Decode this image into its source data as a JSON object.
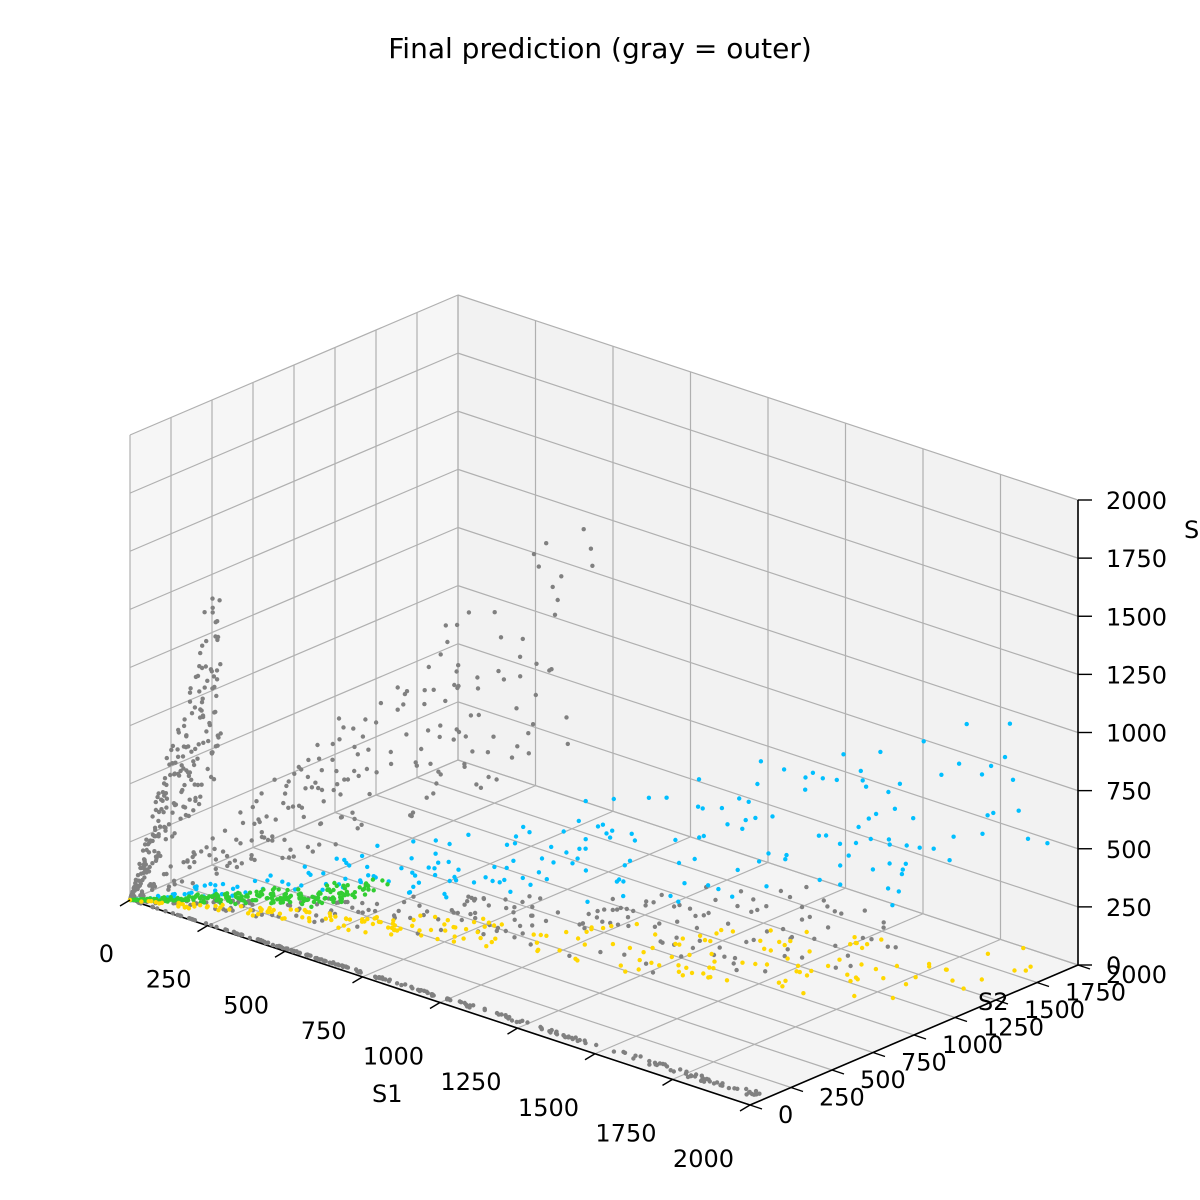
{
  "chart_data": {
    "type": "scatter",
    "projection": "3d",
    "title": "Final prediction (gray = outer)",
    "xlabel": "S1",
    "ylabel": "S2",
    "zlabel": "S",
    "xlim": [
      0,
      2000
    ],
    "ylim": [
      0,
      2000
    ],
    "zlim": [
      0,
      2000
    ],
    "xticks": [
      "0",
      "250",
      "500",
      "750",
      "1000",
      "1250",
      "1500",
      "1750",
      "2000"
    ],
    "yticks": [
      "0",
      "250",
      "500",
      "750",
      "1000",
      "1250",
      "1500",
      "1750",
      "2000"
    ],
    "zticks": [
      "0",
      "250",
      "500",
      "750",
      "1000",
      "1250",
      "1500",
      "1750",
      "2000"
    ],
    "grid": true,
    "colors": {
      "outer": "#808080",
      "cyan": "#00bfff",
      "green": "#32cd32",
      "gold": "#ffd700",
      "pane_back": "#f2f2f2",
      "pane_side": "#f6f6f6",
      "pane_floor": "#f4f4f4",
      "grid": "#b0b0b0"
    },
    "series": [
      {
        "color": "#808080",
        "clusters": [
          {
            "x": [
              0,
              250
            ],
            "y": [
              0,
              100
            ],
            "z": [
              0,
              1550
            ]
          },
          {
            "x": [
              0,
              1000
            ],
            "y": [
              0,
              1000
            ],
            "z": [
              0,
              1800
            ]
          },
          {
            "x": [
              0,
              2000
            ],
            "y": [
              0,
              1000
            ],
            "z": [
              0,
              700
            ]
          },
          {
            "x": [
              0,
              2000
            ],
            "y": [
              0,
              60
            ],
            "z": [
              0,
              40
            ]
          }
        ]
      },
      {
        "color": "#00bfff",
        "clusters": [
          {
            "x": [
              0,
              2000
            ],
            "y": [
              0,
              2000
            ],
            "z": [
              0,
              1200
            ]
          }
        ]
      },
      {
        "color": "#32cd32",
        "clusters": [
          {
            "x": [
              0,
              450
            ],
            "y": [
              0,
              800
            ],
            "z": [
              0,
              60
            ]
          }
        ]
      },
      {
        "color": "#ffd700",
        "clusters": [
          {
            "x": [
              0,
              2000
            ],
            "y": [
              0,
              2000
            ],
            "z": [
              0,
              100
            ]
          }
        ]
      }
    ]
  }
}
